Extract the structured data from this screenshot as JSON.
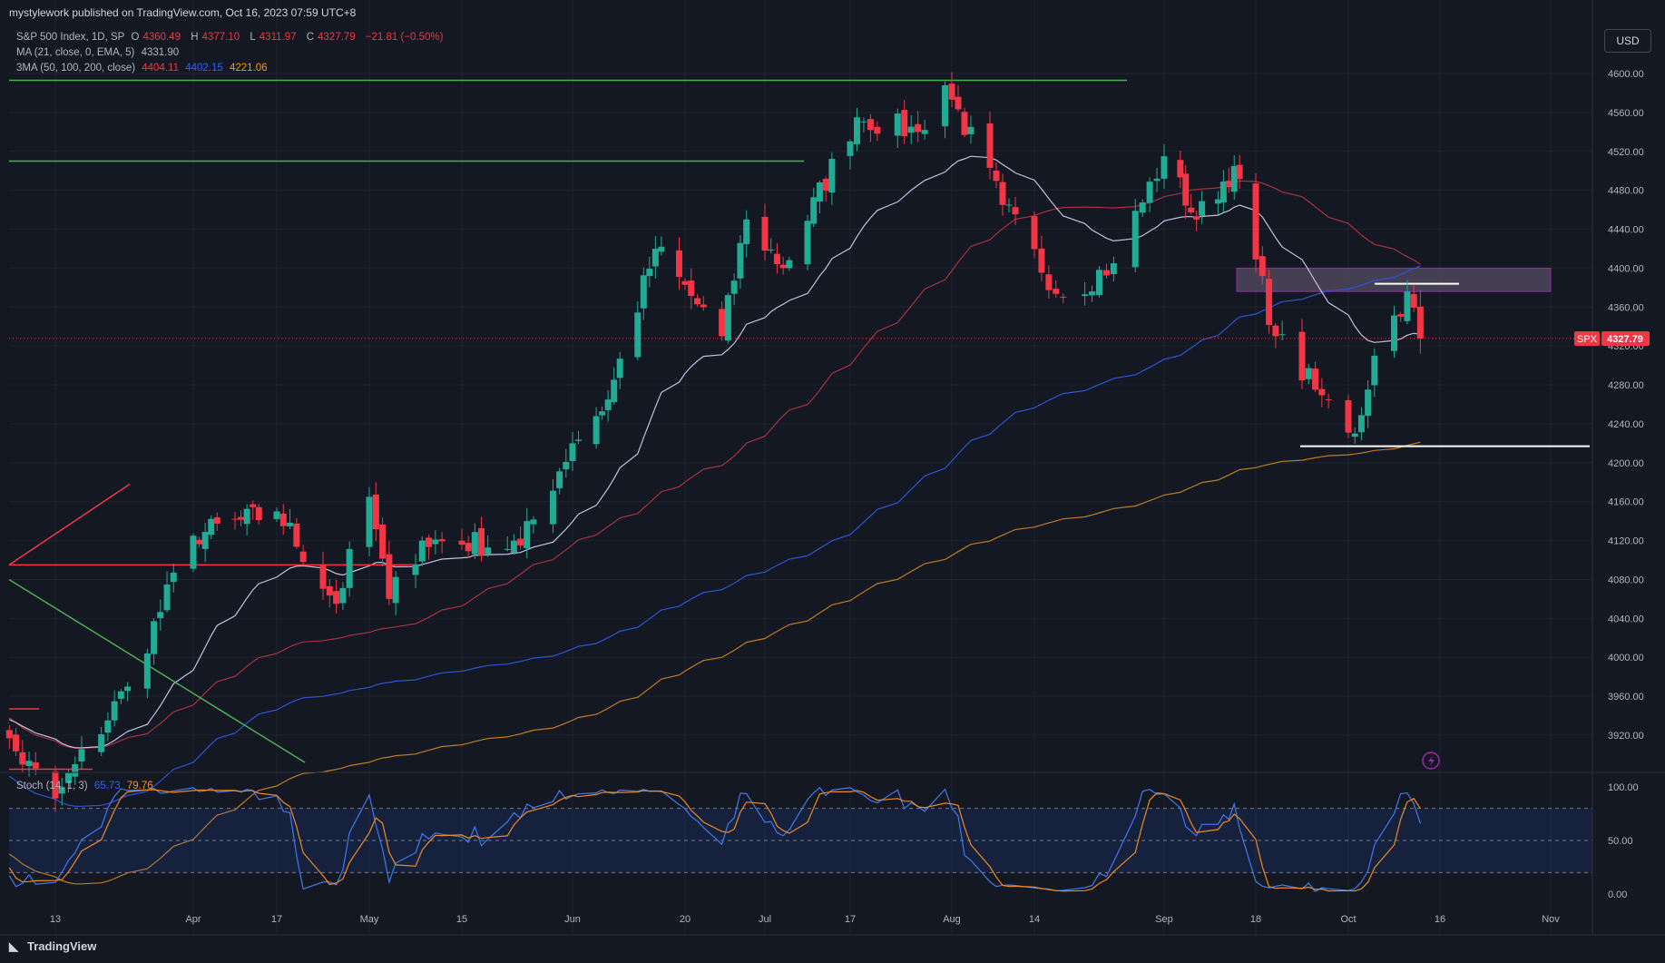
{
  "header": {
    "published_by": "mystylework published on TradingView.com, Oct 16, 2023 07:59 UTC+8"
  },
  "legend": {
    "symbol": "S&P 500 Index, 1D, SP",
    "ohlc": {
      "o_label": "O",
      "o": "4360.49",
      "h_label": "H",
      "h": "4377.10",
      "l_label": "L",
      "l": "4311.97",
      "c_label": "C",
      "c": "4327.79",
      "change": "−21.81 (−0.50%)"
    },
    "ma": {
      "label": "MA (21, close, 0, EMA, 5)",
      "value": "4331.90"
    },
    "ma3": {
      "label": "3MA (50, 100, 200, close)",
      "v1": "4404.11",
      "v2": "4402.15",
      "v3": "4221.06"
    },
    "stoch": {
      "label": "Stoch (14, 1, 3)",
      "k": "65.73",
      "d": "79.76"
    }
  },
  "currency_button": "USD",
  "price_tag": {
    "symbol": "SPX",
    "value": "4327.79"
  },
  "brand": "TradingView",
  "colors": {
    "up": "#22ab94",
    "down": "#f23645",
    "ma21": "#c4c0e0",
    "sma50": "#a8323e",
    "sma100": "#2b56d6",
    "sma200": "#c07a1f",
    "stoch_k": "#3f7af0",
    "stoch_d": "#f08a24",
    "zone": "#5a5068"
  },
  "chart_data": {
    "type": "candlestick",
    "y_axis": {
      "ylim": [
        3880,
        4610
      ],
      "ticks": [
        "4600.00",
        "4560.00",
        "4520.00",
        "4480.00",
        "4440.00",
        "4400.00",
        "4360.00",
        "4320.00",
        "4280.00",
        "4240.00",
        "4200.00",
        "4160.00",
        "4120.00",
        "4080.00",
        "4040.00",
        "4000.00",
        "3960.00",
        "3920.00"
      ]
    },
    "x_axis": {
      "ticks": [
        "13",
        "Apr",
        "17",
        "May",
        "15",
        "Jun",
        "20",
        "Jul",
        "17",
        "Aug",
        "14",
        "Sep",
        "18",
        "Oct",
        "16",
        "Nov"
      ]
    },
    "stoch_axis": {
      "ylim": [
        0,
        100
      ],
      "ticks": [
        "100.00",
        "50.00",
        "0.00"
      ],
      "bands": [
        20,
        50,
        80
      ]
    },
    "anchors": [
      {
        "date": "2023-03-01",
        "close": 3950
      },
      {
        "date": "2023-03-13",
        "close": 3855
      },
      {
        "date": "2023-03-24",
        "close": 3970
      },
      {
        "date": "2023-04-03",
        "close": 4125
      },
      {
        "date": "2023-04-17",
        "close": 4150
      },
      {
        "date": "2023-04-26",
        "close": 4055
      },
      {
        "date": "2023-05-01",
        "close": 4165
      },
      {
        "date": "2023-05-04",
        "close": 4060
      },
      {
        "date": "2023-05-09",
        "close": 4120
      },
      {
        "date": "2023-05-24",
        "close": 4115
      },
      {
        "date": "2023-06-01",
        "close": 4220
      },
      {
        "date": "2023-06-07",
        "close": 4265
      },
      {
        "date": "2023-06-15",
        "close": 4420
      },
      {
        "date": "2023-06-26",
        "close": 4330
      },
      {
        "date": "2023-06-30",
        "close": 4450
      },
      {
        "date": "2023-07-06",
        "close": 4400
      },
      {
        "date": "2023-07-18",
        "close": 4555
      },
      {
        "date": "2023-07-27",
        "close": 4540
      },
      {
        "date": "2023-07-31",
        "close": 4588
      },
      {
        "date": "2023-08-09",
        "close": 4465
      },
      {
        "date": "2023-08-18",
        "close": 4370
      },
      {
        "date": "2023-08-25",
        "close": 4405
      },
      {
        "date": "2023-09-01",
        "close": 4515
      },
      {
        "date": "2023-09-07",
        "close": 4450
      },
      {
        "date": "2023-09-14",
        "close": 4505
      },
      {
        "date": "2023-09-21",
        "close": 4330
      },
      {
        "date": "2023-09-27",
        "close": 4275
      },
      {
        "date": "2023-10-03",
        "close": 4230
      },
      {
        "date": "2023-10-06",
        "close": 4310
      },
      {
        "date": "2023-10-11",
        "close": 4376
      },
      {
        "date": "2023-10-13",
        "close": 4327.79
      }
    ],
    "last_bar": {
      "open": 4360.49,
      "high": 4377.1,
      "low": 4311.97,
      "close": 4327.79
    },
    "indicators": {
      "ma21": 4331.9,
      "sma50": 4404.11,
      "sma100": 4402.15,
      "sma200": 4221.06,
      "stoch_k": 65.73,
      "stoch_d": 79.76
    },
    "annotations": [
      {
        "type": "hline",
        "price": 4593,
        "color": "#4caf50"
      },
      {
        "type": "hline",
        "price": 4510,
        "color": "#4caf50"
      },
      {
        "type": "hline",
        "price": 4095,
        "color": "#f23645"
      },
      {
        "type": "hline",
        "price": 3947,
        "color": "#f23645"
      },
      {
        "type": "hline",
        "price": 3885,
        "color": "#f23645"
      },
      {
        "type": "hline",
        "price": 4217,
        "color": "#ffffff"
      },
      {
        "type": "hline",
        "price": 4384,
        "color": "#ffffff"
      },
      {
        "type": "trendline",
        "color": "#f23645",
        "from": {
          "price": 4095
        },
        "to": {
          "price": 4178
        }
      },
      {
        "type": "trendline",
        "color": "#4caf50",
        "from": {
          "price": 4080
        },
        "to": {
          "price": 3892
        }
      },
      {
        "type": "zone",
        "price_from": 4376,
        "price_to": 4400,
        "color": "#9c27b0"
      }
    ]
  }
}
